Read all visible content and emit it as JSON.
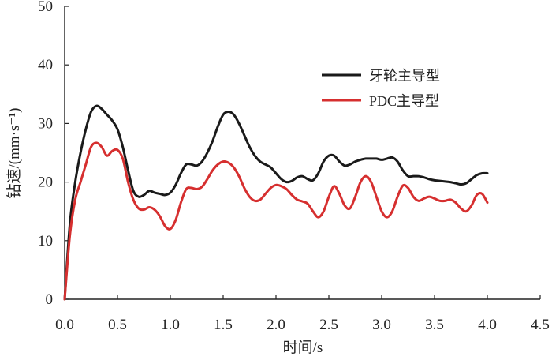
{
  "chart_data": {
    "type": "line",
    "xlabel": "时间/s",
    "ylabel": "钻速/(mm·s⁻¹)",
    "xlim": [
      0.0,
      4.5
    ],
    "ylim": [
      0,
      50
    ],
    "xticks": [
      "0.0",
      "0.5",
      "1.0",
      "1.5",
      "2.0",
      "2.5",
      "3.0",
      "3.5",
      "4.0",
      "4.5"
    ],
    "yticks": [
      "0",
      "10",
      "20",
      "30",
      "40",
      "50"
    ],
    "grid": false,
    "legend_position": "top-right",
    "series": [
      {
        "name": "牙轮主导型",
        "color": "#1a1a1a",
        "points": [
          [
            0.0,
            0
          ],
          [
            0.05,
            13
          ],
          [
            0.1,
            20
          ],
          [
            0.15,
            25
          ],
          [
            0.2,
            29
          ],
          [
            0.25,
            32
          ],
          [
            0.3,
            33
          ],
          [
            0.35,
            32.5
          ],
          [
            0.4,
            31.5
          ],
          [
            0.45,
            30.5
          ],
          [
            0.5,
            29
          ],
          [
            0.55,
            26
          ],
          [
            0.6,
            22
          ],
          [
            0.65,
            18.5
          ],
          [
            0.7,
            17.5
          ],
          [
            0.75,
            17.8
          ],
          [
            0.8,
            18.5
          ],
          [
            0.85,
            18.2
          ],
          [
            0.9,
            18
          ],
          [
            0.95,
            17.8
          ],
          [
            1.0,
            18.2
          ],
          [
            1.05,
            19.5
          ],
          [
            1.1,
            21.5
          ],
          [
            1.15,
            23
          ],
          [
            1.2,
            23
          ],
          [
            1.25,
            22.8
          ],
          [
            1.3,
            23.5
          ],
          [
            1.35,
            25
          ],
          [
            1.4,
            27
          ],
          [
            1.45,
            29.5
          ],
          [
            1.5,
            31.5
          ],
          [
            1.55,
            32
          ],
          [
            1.6,
            31.5
          ],
          [
            1.65,
            30
          ],
          [
            1.7,
            28
          ],
          [
            1.75,
            26
          ],
          [
            1.8,
            24.5
          ],
          [
            1.85,
            23.5
          ],
          [
            1.9,
            23
          ],
          [
            1.95,
            22.5
          ],
          [
            2.0,
            21.5
          ],
          [
            2.05,
            20.5
          ],
          [
            2.1,
            20
          ],
          [
            2.15,
            20.2
          ],
          [
            2.2,
            20.8
          ],
          [
            2.25,
            21
          ],
          [
            2.3,
            20.5
          ],
          [
            2.35,
            20.3
          ],
          [
            2.4,
            21.5
          ],
          [
            2.45,
            23.5
          ],
          [
            2.5,
            24.5
          ],
          [
            2.55,
            24.5
          ],
          [
            2.6,
            23.5
          ],
          [
            2.65,
            22.8
          ],
          [
            2.7,
            23
          ],
          [
            2.75,
            23.5
          ],
          [
            2.8,
            23.8
          ],
          [
            2.85,
            24
          ],
          [
            2.9,
            24
          ],
          [
            2.95,
            24
          ],
          [
            3.0,
            23.8
          ],
          [
            3.05,
            24
          ],
          [
            3.1,
            24.2
          ],
          [
            3.15,
            23.5
          ],
          [
            3.2,
            22
          ],
          [
            3.25,
            21
          ],
          [
            3.3,
            21
          ],
          [
            3.35,
            21
          ],
          [
            3.4,
            20.8
          ],
          [
            3.45,
            20.5
          ],
          [
            3.5,
            20.3
          ],
          [
            3.55,
            20.2
          ],
          [
            3.6,
            20.1
          ],
          [
            3.65,
            20
          ],
          [
            3.7,
            19.8
          ],
          [
            3.75,
            19.6
          ],
          [
            3.8,
            19.8
          ],
          [
            3.85,
            20.5
          ],
          [
            3.9,
            21.2
          ],
          [
            3.95,
            21.5
          ],
          [
            4.0,
            21.5
          ]
        ]
      },
      {
        "name": "PDC主导型",
        "color": "#d62f2f",
        "points": [
          [
            0.0,
            0
          ],
          [
            0.05,
            11
          ],
          [
            0.1,
            17
          ],
          [
            0.15,
            20
          ],
          [
            0.2,
            23
          ],
          [
            0.25,
            26
          ],
          [
            0.3,
            26.7
          ],
          [
            0.35,
            26
          ],
          [
            0.4,
            24.5
          ],
          [
            0.45,
            25.3
          ],
          [
            0.5,
            25.5
          ],
          [
            0.55,
            24
          ],
          [
            0.6,
            20
          ],
          [
            0.65,
            17
          ],
          [
            0.7,
            15.5
          ],
          [
            0.75,
            15.3
          ],
          [
            0.8,
            15.7
          ],
          [
            0.85,
            15.3
          ],
          [
            0.9,
            14.2
          ],
          [
            0.95,
            12.5
          ],
          [
            1.0,
            12
          ],
          [
            1.05,
            13.5
          ],
          [
            1.1,
            16.5
          ],
          [
            1.15,
            18.8
          ],
          [
            1.2,
            19
          ],
          [
            1.25,
            18.8
          ],
          [
            1.3,
            19.2
          ],
          [
            1.35,
            20.5
          ],
          [
            1.4,
            22
          ],
          [
            1.45,
            23
          ],
          [
            1.5,
            23.5
          ],
          [
            1.55,
            23.3
          ],
          [
            1.6,
            22.5
          ],
          [
            1.65,
            21
          ],
          [
            1.7,
            19
          ],
          [
            1.75,
            17.5
          ],
          [
            1.8,
            16.8
          ],
          [
            1.85,
            17
          ],
          [
            1.9,
            18
          ],
          [
            1.95,
            19
          ],
          [
            2.0,
            19.5
          ],
          [
            2.05,
            19.3
          ],
          [
            2.1,
            18.8
          ],
          [
            2.15,
            17.8
          ],
          [
            2.2,
            17
          ],
          [
            2.25,
            16.7
          ],
          [
            2.3,
            16.3
          ],
          [
            2.35,
            15
          ],
          [
            2.4,
            14
          ],
          [
            2.45,
            15
          ],
          [
            2.5,
            17.5
          ],
          [
            2.55,
            19.3
          ],
          [
            2.6,
            18
          ],
          [
            2.65,
            16
          ],
          [
            2.7,
            15.5
          ],
          [
            2.75,
            17.5
          ],
          [
            2.8,
            20
          ],
          [
            2.85,
            21
          ],
          [
            2.9,
            20
          ],
          [
            2.95,
            17.5
          ],
          [
            3.0,
            15
          ],
          [
            3.05,
            14
          ],
          [
            3.1,
            15
          ],
          [
            3.15,
            17.5
          ],
          [
            3.2,
            19.4
          ],
          [
            3.25,
            19
          ],
          [
            3.3,
            17.5
          ],
          [
            3.35,
            16.8
          ],
          [
            3.4,
            17.2
          ],
          [
            3.45,
            17.5
          ],
          [
            3.5,
            17.2
          ],
          [
            3.55,
            16.8
          ],
          [
            3.6,
            16.8
          ],
          [
            3.65,
            17
          ],
          [
            3.7,
            16.5
          ],
          [
            3.75,
            15.5
          ],
          [
            3.8,
            15
          ],
          [
            3.85,
            16
          ],
          [
            3.9,
            17.8
          ],
          [
            3.95,
            18
          ],
          [
            4.0,
            16.5
          ]
        ]
      }
    ]
  }
}
